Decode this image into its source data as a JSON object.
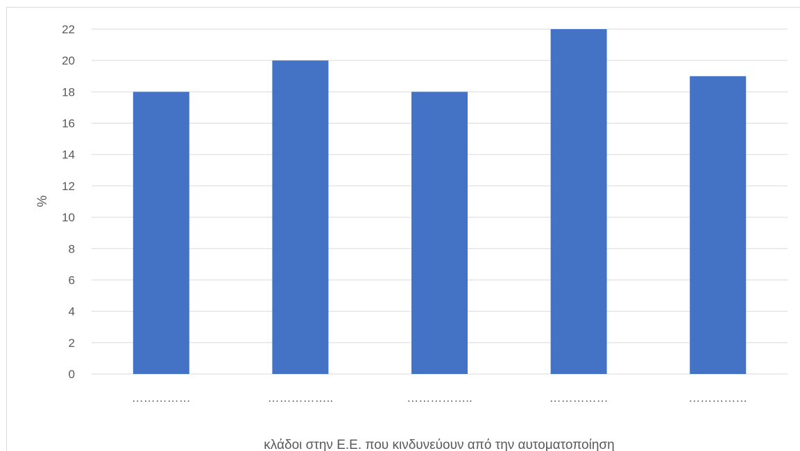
{
  "chart_data": {
    "type": "bar",
    "categories": [
      "……………",
      "……………..",
      "……………..",
      "……………",
      "……………"
    ],
    "values": [
      18,
      20,
      18,
      22,
      19
    ],
    "xlabel": "κλάδοι στην Ε.Ε. που κινδυνεύουν από την αυτοματοποίηση",
    "ylabel": "%",
    "ylim": [
      0,
      22
    ],
    "yticks": [
      0,
      2,
      4,
      6,
      8,
      10,
      12,
      14,
      16,
      18,
      20,
      22
    ],
    "grid": true,
    "legend": "none",
    "colors": {
      "bar": "#4472C4",
      "gridline": "#d9d9d9",
      "text": "#595959"
    }
  }
}
